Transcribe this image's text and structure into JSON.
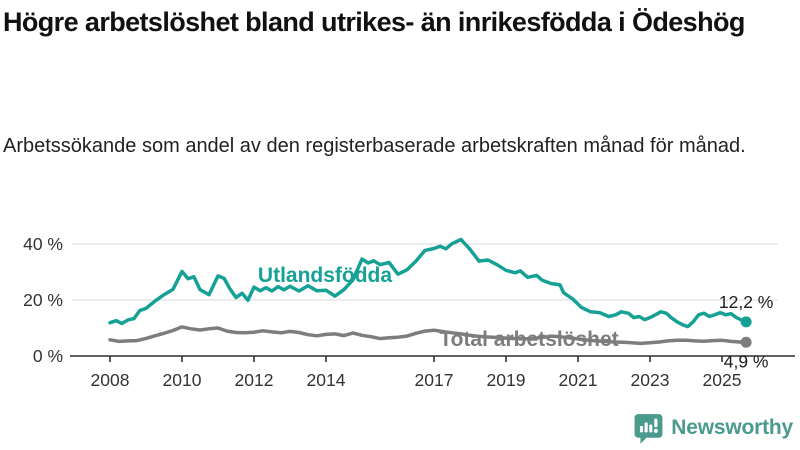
{
  "header": {
    "title": "Högre arbetslöshet bland utrikes- än inrikesfödda i Ödeshög",
    "subtitle": "Arbetssökande som andel av den registerbaserade arbetskraften månad för månad."
  },
  "logo": {
    "name": "Newsworthy",
    "icon": "bar-chart-speech-bubble-icon",
    "color": "#4a9a8e"
  },
  "colors": {
    "series_utlandsfodda": "#15a195",
    "series_total": "#7d7d7d",
    "grid": "#d9d9d9",
    "axis": "#2e2e2e",
    "tick_text": "#333333",
    "annotation_text": "#1d1d1d"
  },
  "chart_data": {
    "type": "line",
    "title": "Högre arbetslöshet bland utrikes- än inrikesfödda i Ödeshög",
    "subtitle": "Arbetssökande som andel av den registerbaserade arbetskraften månad för månad.",
    "xlabel": "",
    "ylabel": "",
    "x_unit": "decimal year, monthly data",
    "xlim": [
      2007.1,
      2026.0
    ],
    "ylim": [
      0,
      44
    ],
    "grid": "horizontal-only",
    "x_ticks": [
      2008,
      2010,
      2012,
      2014,
      2017,
      2019,
      2021,
      2023,
      2025
    ],
    "y_ticks": [
      {
        "value": 0,
        "label": "0 %"
      },
      {
        "value": 20,
        "label": "20 %"
      },
      {
        "value": 40,
        "label": "40 %"
      }
    ],
    "legend_position": "inline-labels-on-lines",
    "series": [
      {
        "name": "Utlandsfödda",
        "color": "#15a195",
        "end_label": "12,2 %",
        "end_value": 12.2,
        "points": [
          [
            2008.0,
            11.9
          ],
          [
            2008.17,
            12.6
          ],
          [
            2008.33,
            11.6
          ],
          [
            2008.5,
            12.9
          ],
          [
            2008.67,
            13.4
          ],
          [
            2008.83,
            16.3
          ],
          [
            2009.0,
            17.0
          ],
          [
            2009.25,
            19.6
          ],
          [
            2009.5,
            21.9
          ],
          [
            2009.75,
            23.8
          ],
          [
            2010.0,
            30.2
          ],
          [
            2010.17,
            27.6
          ],
          [
            2010.33,
            28.3
          ],
          [
            2010.5,
            23.7
          ],
          [
            2010.75,
            21.9
          ],
          [
            2011.0,
            28.6
          ],
          [
            2011.17,
            27.7
          ],
          [
            2011.33,
            24.0
          ],
          [
            2011.5,
            20.9
          ],
          [
            2011.67,
            22.4
          ],
          [
            2011.83,
            19.9
          ],
          [
            2012.0,
            24.6
          ],
          [
            2012.17,
            23.3
          ],
          [
            2012.33,
            24.4
          ],
          [
            2012.5,
            23.2
          ],
          [
            2012.67,
            24.8
          ],
          [
            2012.83,
            23.6
          ],
          [
            2013.0,
            24.9
          ],
          [
            2013.25,
            23.2
          ],
          [
            2013.5,
            25.1
          ],
          [
            2013.75,
            23.3
          ],
          [
            2014.0,
            23.5
          ],
          [
            2014.25,
            21.4
          ],
          [
            2014.5,
            23.7
          ],
          [
            2014.75,
            27.2
          ],
          [
            2015.0,
            34.6
          ],
          [
            2015.17,
            33.2
          ],
          [
            2015.33,
            34.0
          ],
          [
            2015.5,
            32.6
          ],
          [
            2015.75,
            33.4
          ],
          [
            2016.0,
            29.2
          ],
          [
            2016.25,
            30.8
          ],
          [
            2016.5,
            33.9
          ],
          [
            2016.75,
            37.7
          ],
          [
            2017.0,
            38.4
          ],
          [
            2017.17,
            39.2
          ],
          [
            2017.33,
            38.3
          ],
          [
            2017.5,
            40.1
          ],
          [
            2017.75,
            41.6
          ],
          [
            2018.0,
            38.1
          ],
          [
            2018.25,
            33.9
          ],
          [
            2018.5,
            34.3
          ],
          [
            2018.75,
            32.6
          ],
          [
            2019.0,
            30.6
          ],
          [
            2019.25,
            29.7
          ],
          [
            2019.4,
            30.4
          ],
          [
            2019.6,
            28.1
          ],
          [
            2019.85,
            28.8
          ],
          [
            2020.0,
            27.1
          ],
          [
            2020.25,
            25.9
          ],
          [
            2020.5,
            25.4
          ],
          [
            2020.6,
            22.6
          ],
          [
            2020.85,
            20.4
          ],
          [
            2021.1,
            17.3
          ],
          [
            2021.35,
            15.8
          ],
          [
            2021.6,
            15.5
          ],
          [
            2021.85,
            14.1
          ],
          [
            2022.05,
            14.7
          ],
          [
            2022.2,
            15.8
          ],
          [
            2022.4,
            15.3
          ],
          [
            2022.55,
            13.7
          ],
          [
            2022.7,
            14.1
          ],
          [
            2022.85,
            13.0
          ],
          [
            2023.0,
            13.7
          ],
          [
            2023.15,
            14.7
          ],
          [
            2023.3,
            15.8
          ],
          [
            2023.45,
            15.3
          ],
          [
            2023.6,
            13.6
          ],
          [
            2023.75,
            12.2
          ],
          [
            2023.9,
            11.2
          ],
          [
            2024.05,
            10.5
          ],
          [
            2024.2,
            12.2
          ],
          [
            2024.35,
            14.7
          ],
          [
            2024.5,
            15.3
          ],
          [
            2024.65,
            14.1
          ],
          [
            2024.8,
            14.7
          ],
          [
            2024.95,
            15.5
          ],
          [
            2025.1,
            14.7
          ],
          [
            2025.25,
            15.1
          ],
          [
            2025.4,
            13.7
          ],
          [
            2025.55,
            12.8
          ],
          [
            2025.67,
            12.2
          ]
        ]
      },
      {
        "name": "Total arbetslöshet",
        "color": "#7d7d7d",
        "end_label": "4,9 %",
        "end_value": 4.9,
        "points": [
          [
            2008.0,
            5.8
          ],
          [
            2008.25,
            5.2
          ],
          [
            2008.5,
            5.4
          ],
          [
            2008.75,
            5.5
          ],
          [
            2009.0,
            6.3
          ],
          [
            2009.25,
            7.2
          ],
          [
            2009.5,
            8.1
          ],
          [
            2009.75,
            9.1
          ],
          [
            2010.0,
            10.4
          ],
          [
            2010.25,
            9.7
          ],
          [
            2010.5,
            9.3
          ],
          [
            2010.75,
            9.7
          ],
          [
            2011.0,
            10.0
          ],
          [
            2011.25,
            8.9
          ],
          [
            2011.5,
            8.4
          ],
          [
            2011.75,
            8.3
          ],
          [
            2012.0,
            8.5
          ],
          [
            2012.25,
            9.0
          ],
          [
            2012.5,
            8.6
          ],
          [
            2012.75,
            8.3
          ],
          [
            2013.0,
            8.8
          ],
          [
            2013.25,
            8.4
          ],
          [
            2013.5,
            7.6
          ],
          [
            2013.75,
            7.2
          ],
          [
            2014.0,
            7.7
          ],
          [
            2014.25,
            7.9
          ],
          [
            2014.5,
            7.3
          ],
          [
            2014.75,
            8.2
          ],
          [
            2015.0,
            7.4
          ],
          [
            2015.25,
            6.9
          ],
          [
            2015.5,
            6.2
          ],
          [
            2015.75,
            6.5
          ],
          [
            2016.0,
            6.7
          ],
          [
            2016.25,
            7.1
          ],
          [
            2016.5,
            8.1
          ],
          [
            2016.75,
            8.9
          ],
          [
            2017.0,
            9.2
          ],
          [
            2017.25,
            8.7
          ],
          [
            2017.5,
            8.3
          ],
          [
            2017.75,
            7.9
          ],
          [
            2018.0,
            7.4
          ],
          [
            2018.25,
            7.0
          ],
          [
            2018.5,
            6.8
          ],
          [
            2018.75,
            6.6
          ],
          [
            2019.0,
            6.4
          ],
          [
            2019.25,
            6.2
          ],
          [
            2019.5,
            6.1
          ],
          [
            2019.75,
            6.3
          ],
          [
            2020.0,
            6.6
          ],
          [
            2020.25,
            7.1
          ],
          [
            2020.5,
            6.9
          ],
          [
            2020.75,
            6.5
          ],
          [
            2021.0,
            6.1
          ],
          [
            2021.25,
            5.7
          ],
          [
            2021.5,
            5.4
          ],
          [
            2021.75,
            5.2
          ],
          [
            2022.0,
            5.0
          ],
          [
            2022.25,
            4.9
          ],
          [
            2022.5,
            4.7
          ],
          [
            2022.75,
            4.5
          ],
          [
            2023.0,
            4.7
          ],
          [
            2023.25,
            5.0
          ],
          [
            2023.5,
            5.4
          ],
          [
            2023.75,
            5.6
          ],
          [
            2024.0,
            5.6
          ],
          [
            2024.25,
            5.4
          ],
          [
            2024.5,
            5.3
          ],
          [
            2024.75,
            5.5
          ],
          [
            2025.0,
            5.6
          ],
          [
            2025.25,
            5.2
          ],
          [
            2025.5,
            5.0
          ],
          [
            2025.67,
            4.9
          ]
        ]
      }
    ]
  }
}
